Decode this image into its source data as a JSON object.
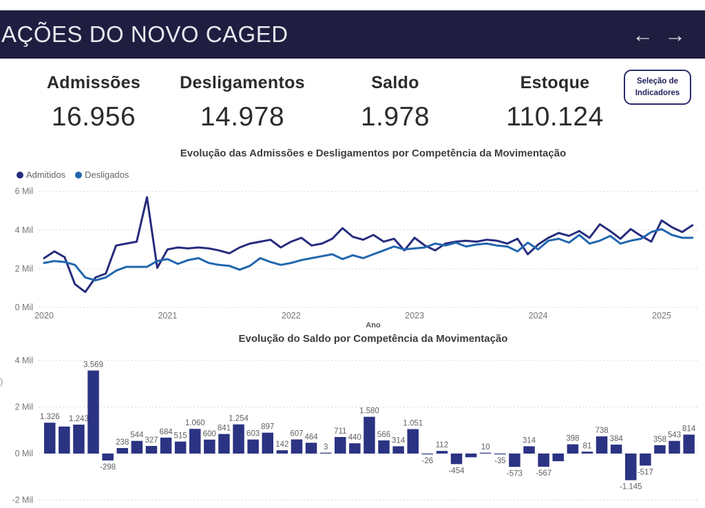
{
  "header": {
    "title": "AÇÕES DO NOVO CAGED",
    "nav_back": "←",
    "nav_forward": "→",
    "bg_color": "#1f1e40"
  },
  "kpis": [
    {
      "label": "Admissões",
      "value": "16.956"
    },
    {
      "label": "Desligamentos",
      "value": "14.978"
    },
    {
      "label": "Saldo",
      "value": "1.978"
    },
    {
      "label": "Estoque",
      "value": "110.124"
    }
  ],
  "selector_button": {
    "line1": "Seleção de",
    "line2": "Indicadores"
  },
  "colors": {
    "admitidos": "#272c7d",
    "desligados": "#2166ae",
    "bar": "#2b3383",
    "grid": "#d9d9d9"
  },
  "chart_data": [
    {
      "type": "line",
      "title": "Evolução das Admissões e Desligamentos por Competência da Movimentação",
      "xlabel": "Ano",
      "x_ticks": [
        "2020",
        "2021",
        "2022",
        "2023",
        "2024",
        "2025"
      ],
      "y_ticks": [
        {
          "label": "6 Mil",
          "value": 6
        },
        {
          "label": "4 Mil",
          "value": 4
        },
        {
          "label": "2 Mil",
          "value": 2
        },
        {
          "label": "0 Mil",
          "value": 0
        }
      ],
      "ylim_mil": [
        0,
        6
      ],
      "unit": "Mil (thousands), monthly Jan 2020 – Apr 2025",
      "legend_position": "top-left",
      "series": [
        {
          "name": "Admitidos",
          "color": "#272c7d",
          "values": [
            2.55,
            2.9,
            2.6,
            1.2,
            0.8,
            1.55,
            1.75,
            3.2,
            3.3,
            3.4,
            5.7,
            2.05,
            3.0,
            3.1,
            3.05,
            3.1,
            3.05,
            2.95,
            2.8,
            3.1,
            3.3,
            3.4,
            3.5,
            3.1,
            3.4,
            3.6,
            3.2,
            3.3,
            3.55,
            4.1,
            3.65,
            3.5,
            3.75,
            3.4,
            3.55,
            2.95,
            3.6,
            3.2,
            2.95,
            3.3,
            3.4,
            3.45,
            3.4,
            3.5,
            3.45,
            3.3,
            3.55,
            2.75,
            3.25,
            3.6,
            3.85,
            3.7,
            3.95,
            3.6,
            4.3,
            3.95,
            3.55,
            4.05,
            3.7,
            3.4,
            4.5,
            4.15,
            3.9,
            4.25
          ]
        },
        {
          "name": "Desligados",
          "color": "#2166ae",
          "values": [
            2.3,
            2.4,
            2.35,
            2.2,
            1.55,
            1.4,
            1.55,
            1.9,
            2.1,
            2.1,
            2.1,
            2.4,
            2.5,
            2.25,
            2.45,
            2.55,
            2.3,
            2.2,
            2.15,
            1.95,
            2.15,
            2.55,
            2.35,
            2.2,
            2.3,
            2.45,
            2.55,
            2.65,
            2.75,
            2.5,
            2.7,
            2.55,
            2.75,
            2.95,
            3.15,
            3.0,
            3.05,
            3.1,
            3.3,
            3.2,
            3.35,
            3.15,
            3.25,
            3.3,
            3.2,
            3.15,
            2.9,
            3.35,
            3.0,
            3.45,
            3.55,
            3.35,
            3.75,
            3.3,
            3.45,
            3.7,
            3.3,
            3.45,
            3.55,
            3.9,
            4.05,
            3.75,
            3.6,
            3.6
          ]
        }
      ]
    },
    {
      "type": "bar",
      "title": "Evolução do Saldo por Competência da Movimentação",
      "y_ticks": [
        {
          "label": "4 Mil",
          "value": 4000
        },
        {
          "label": "2 Mil",
          "value": 2000
        },
        {
          "label": "0 Mil",
          "value": 0
        },
        {
          "label": "-2 Mil",
          "value": -2000
        }
      ],
      "ylim": [
        -2000,
        4000
      ],
      "y_axis_title_fragment": ")",
      "bar_color": "#2b3383",
      "values": [
        1326,
        1160,
        1243,
        3569,
        -298,
        238,
        544,
        327,
        684,
        515,
        1060,
        600,
        841,
        1254,
        603,
        897,
        142,
        607,
        464,
        3,
        711,
        440,
        1580,
        566,
        314,
        1051,
        -26,
        112,
        -454,
        -160,
        10,
        -35,
        -573,
        314,
        -567,
        -330,
        398,
        81,
        738,
        384,
        -1145,
        -517,
        358,
        543,
        814
      ],
      "labels": [
        "1.326",
        null,
        "1.243",
        "3.569",
        "-298",
        "238",
        "544",
        "327",
        "684",
        "515",
        "1.060",
        "600",
        "841",
        "1.254",
        "603",
        "897",
        "142",
        "607",
        "464",
        "3",
        "711",
        "440",
        "1.580",
        "566",
        "314",
        "1.051",
        "-26",
        "112",
        "-454",
        null,
        "10",
        "-35",
        "-573",
        "314",
        "-567",
        null,
        "398",
        "81",
        "738",
        "384",
        "-1.145",
        "-517",
        "358",
        "543",
        "814"
      ]
    }
  ]
}
